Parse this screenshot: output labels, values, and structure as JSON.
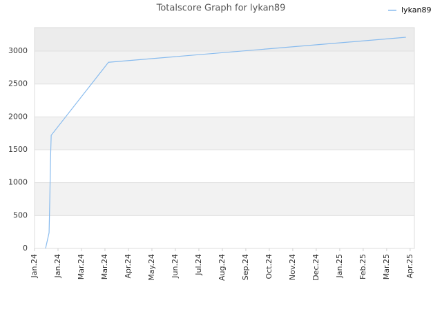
{
  "chart_data": {
    "type": "line",
    "title": "Totalscore Graph for lykan89",
    "x": [
      0.47,
      0.62,
      0.65,
      0.68,
      0.71,
      3.15,
      15.82
    ],
    "series": [
      {
        "name": "lykan89",
        "color": "#88bbee",
        "values": [
          0,
          240,
          735,
          1340,
          1720,
          2830,
          3210
        ]
      }
    ],
    "xlim": [
      0,
      16.18
    ],
    "xticks": [
      {
        "value": 0,
        "label": "Jan.24"
      },
      {
        "value": 1,
        "label": "Jan.24"
      },
      {
        "value": 2,
        "label": "Mar.24"
      },
      {
        "value": 3,
        "label": "Mar.24"
      },
      {
        "value": 4,
        "label": "Apr.24"
      },
      {
        "value": 5,
        "label": "May.24"
      },
      {
        "value": 6,
        "label": "Jun.24"
      },
      {
        "value": 7,
        "label": "Jul.24"
      },
      {
        "value": 8,
        "label": "Aug.24"
      },
      {
        "value": 9,
        "label": "Sep.24"
      },
      {
        "value": 10,
        "label": "Oct.24"
      },
      {
        "value": 11,
        "label": "Nov.24"
      },
      {
        "value": 12,
        "label": "Dec.24"
      },
      {
        "value": 13,
        "label": "Jan.25"
      },
      {
        "value": 14,
        "label": "Feb.25"
      },
      {
        "value": 15,
        "label": "Mar.25"
      },
      {
        "value": 16,
        "label": "Apr.25"
      }
    ],
    "ylim": [
      0,
      3357
    ],
    "yticks": [
      0,
      500,
      1000,
      1500,
      2000,
      2500,
      3000
    ],
    "grid": true,
    "legend": "top-right"
  }
}
